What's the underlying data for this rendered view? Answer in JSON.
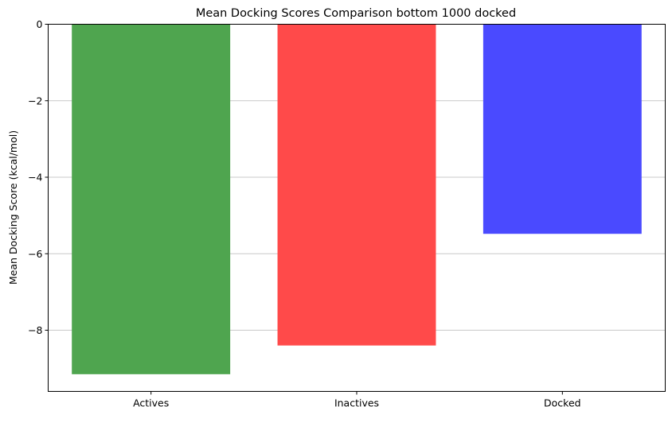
{
  "chart_data": {
    "type": "bar",
    "title": "Mean Docking Scores Comparison bottom 1000 docked",
    "xlabel": "",
    "ylabel": "Mean Docking Score (kcal/mol)",
    "categories": [
      "Actives",
      "Inactives",
      "Docked"
    ],
    "values": [
      -9.15,
      -8.4,
      -5.48
    ],
    "bar_colors": [
      "#4fa54f",
      "#ff4a4a",
      "#4a4aff"
    ],
    "ylim": [
      -9.6,
      0
    ],
    "yticks": [
      0,
      -2,
      -4,
      -6,
      -8
    ],
    "ytick_labels": [
      "0",
      "−2",
      "−4",
      "−6",
      "−8"
    ],
    "grid": "horizontal",
    "grid_color": "#c8c8c8"
  }
}
